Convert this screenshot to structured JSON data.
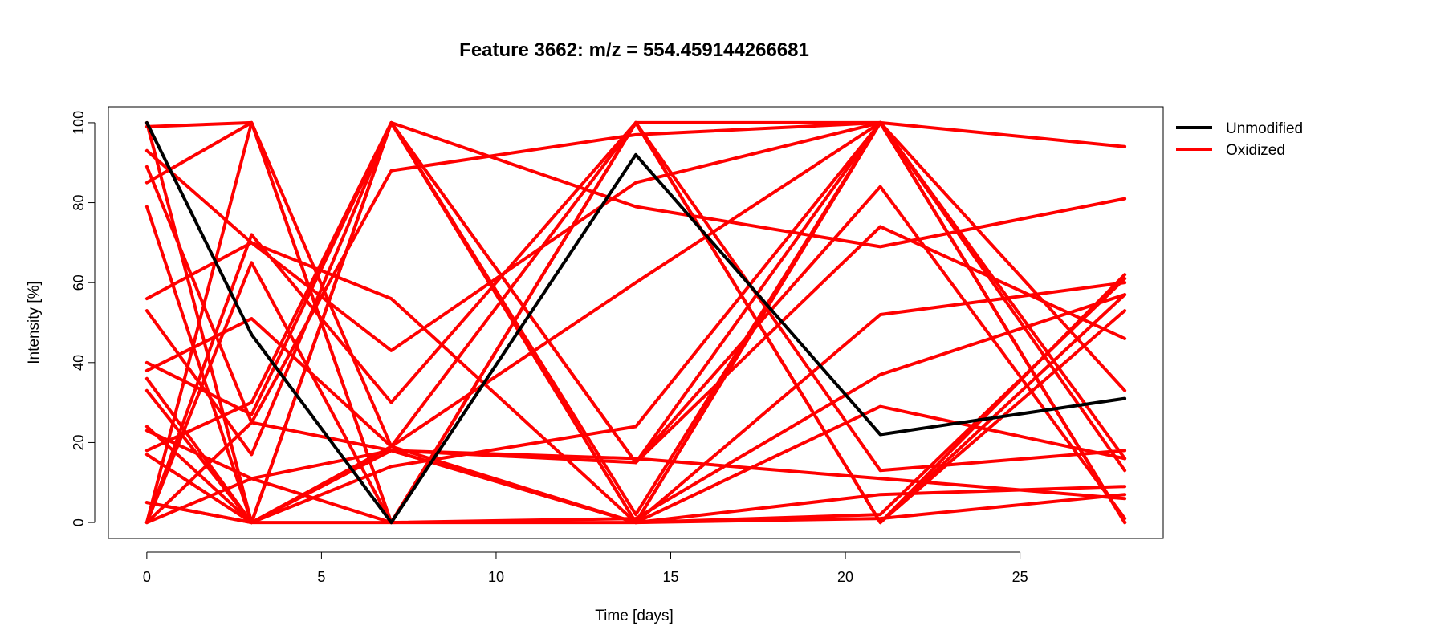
{
  "chart_data": {
    "type": "line",
    "title": "Feature 3662: m/z = 554.459144266681",
    "xlabel": "Time [days]",
    "ylabel": "Intensity [%]",
    "x": [
      0,
      3,
      7,
      14,
      21,
      28
    ],
    "xlim": [
      -1.1,
      29.1
    ],
    "ylim": [
      -4,
      104
    ],
    "xticks": [
      "0",
      "5",
      "10",
      "15",
      "20",
      "25"
    ],
    "yticks": [
      "0",
      "20",
      "40",
      "60",
      "80",
      "100"
    ],
    "grid": false,
    "legend_position": "top-right outside",
    "legend": [
      {
        "label": "Unmodified",
        "color": "#000000"
      },
      {
        "label": "Oxidized",
        "color": "#ff0000"
      }
    ],
    "series": [
      {
        "group": "Unmodified",
        "color": "#000000",
        "values": [
          100,
          47,
          0,
          92,
          22,
          31
        ]
      },
      {
        "group": "Oxidized",
        "color": "#ff0000",
        "values": [
          100,
          0,
          100,
          15,
          100,
          0
        ]
      },
      {
        "group": "Oxidized",
        "color": "#ff0000",
        "values": [
          99,
          100,
          0,
          100,
          0,
          57
        ]
      },
      {
        "group": "Oxidized",
        "color": "#ff0000",
        "values": [
          0,
          100,
          0,
          100,
          0,
          62
        ]
      },
      {
        "group": "Oxidized",
        "color": "#ff0000",
        "values": [
          85,
          100,
          19,
          100,
          0,
          53
        ]
      },
      {
        "group": "Oxidized",
        "color": "#ff0000",
        "values": [
          0,
          72,
          30,
          100,
          13,
          18
        ]
      },
      {
        "group": "Oxidized",
        "color": "#ff0000",
        "values": [
          0,
          65,
          0,
          100,
          100,
          0
        ]
      },
      {
        "group": "Oxidized",
        "color": "#ff0000",
        "values": [
          79,
          0,
          100,
          0,
          100,
          16
        ]
      },
      {
        "group": "Oxidized",
        "color": "#ff0000",
        "values": [
          36,
          0,
          100,
          2,
          100,
          0
        ]
      },
      {
        "group": "Oxidized",
        "color": "#ff0000",
        "values": [
          89,
          25,
          88,
          97,
          100,
          94
        ]
      },
      {
        "group": "Oxidized",
        "color": "#ff0000",
        "values": [
          93,
          70,
          43,
          85,
          100,
          33
        ]
      },
      {
        "group": "Oxidized",
        "color": "#ff0000",
        "values": [
          40,
          27,
          100,
          15,
          74,
          46
        ]
      },
      {
        "group": "Oxidized",
        "color": "#ff0000",
        "values": [
          56,
          70,
          56,
          0,
          52,
          60
        ]
      },
      {
        "group": "Oxidized",
        "color": "#ff0000",
        "values": [
          53,
          17,
          100,
          0,
          100,
          0
        ]
      },
      {
        "group": "Oxidized",
        "color": "#ff0000",
        "values": [
          18,
          30,
          100,
          79,
          69,
          81
        ]
      },
      {
        "group": "Oxidized",
        "color": "#ff0000",
        "values": [
          38,
          51,
          19,
          60,
          100,
          13
        ]
      },
      {
        "group": "Oxidized",
        "color": "#ff0000",
        "values": [
          24,
          0,
          18,
          0,
          29,
          16
        ]
      },
      {
        "group": "Oxidized",
        "color": "#ff0000",
        "values": [
          5,
          0,
          19,
          0,
          2,
          61
        ]
      },
      {
        "group": "Oxidized",
        "color": "#ff0000",
        "values": [
          17,
          0,
          14,
          24,
          100,
          0
        ]
      },
      {
        "group": "Oxidized",
        "color": "#ff0000",
        "values": [
          33,
          0,
          0,
          1,
          37,
          57
        ]
      },
      {
        "group": "Oxidized",
        "color": "#ff0000",
        "values": [
          5,
          0,
          18,
          15,
          84,
          1
        ]
      },
      {
        "group": "Oxidized",
        "color": "#ff0000",
        "values": [
          0,
          25,
          18,
          0,
          7,
          9
        ]
      },
      {
        "group": "Oxidized",
        "color": "#ff0000",
        "values": [
          0,
          11,
          18,
          16,
          11,
          6
        ]
      },
      {
        "group": "Oxidized",
        "color": "#ff0000",
        "values": [
          23,
          11,
          0,
          0,
          1,
          7
        ]
      }
    ]
  }
}
